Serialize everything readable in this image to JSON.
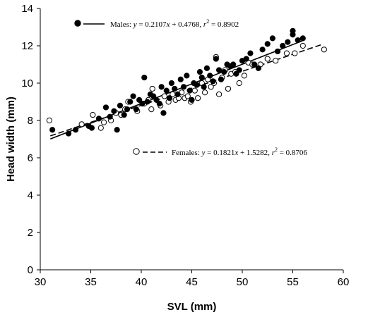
{
  "chart_data": {
    "type": "scatter",
    "xlabel": "SVL (mm)",
    "ylabel": "Head width (mm)",
    "xlim": [
      30,
      60
    ],
    "ylim": [
      0,
      14
    ],
    "xticks": [
      30,
      35,
      40,
      45,
      50,
      55,
      60
    ],
    "yticks": [
      0,
      2,
      4,
      6,
      8,
      10,
      12,
      14
    ],
    "grid": false,
    "legend_position": "inside, top-left and middle-right",
    "series": [
      {
        "name": "Males",
        "marker": "filled-circle",
        "line_style": "solid",
        "color": "#000000",
        "legend_text": {
          "label": "Males: ",
          "y": "y",
          "eq": " = 0.2107",
          "x": "x",
          "rest": " + 0.4768, ",
          "r": "r",
          "sup": "2",
          "val": " = 0.8902"
        },
        "fit": {
          "slope": 0.2107,
          "intercept": 0.4768,
          "x_range": [
            31,
            56
          ]
        },
        "points": [
          [
            31.2,
            7.5
          ],
          [
            32.8,
            7.3
          ],
          [
            33.5,
            7.5
          ],
          [
            34.8,
            7.7
          ],
          [
            35.1,
            7.6
          ],
          [
            35.8,
            8.1
          ],
          [
            36.5,
            8.7
          ],
          [
            36.9,
            8.2
          ],
          [
            37.3,
            8.5
          ],
          [
            37.6,
            7.5
          ],
          [
            37.9,
            8.8
          ],
          [
            38.3,
            8.3
          ],
          [
            38.6,
            8.6
          ],
          [
            38.9,
            9.0
          ],
          [
            39.2,
            9.3
          ],
          [
            39.5,
            8.6
          ],
          [
            39.8,
            9.1
          ],
          [
            40.1,
            8.9
          ],
          [
            40.3,
            10.3
          ],
          [
            40.6,
            9.0
          ],
          [
            40.9,
            9.4
          ],
          [
            41.2,
            9.3
          ],
          [
            41.5,
            9.1
          ],
          [
            41.8,
            8.9
          ],
          [
            42.0,
            9.8
          ],
          [
            42.2,
            8.4
          ],
          [
            42.5,
            9.6
          ],
          [
            42.8,
            9.2
          ],
          [
            43.0,
            10.0
          ],
          [
            43.3,
            9.7
          ],
          [
            43.6,
            9.4
          ],
          [
            43.9,
            10.2
          ],
          [
            44.2,
            9.8
          ],
          [
            44.5,
            10.4
          ],
          [
            44.8,
            9.6
          ],
          [
            45.0,
            9.1
          ],
          [
            45.2,
            10.0
          ],
          [
            45.5,
            9.9
          ],
          [
            45.8,
            10.6
          ],
          [
            46.0,
            10.3
          ],
          [
            46.2,
            9.8
          ],
          [
            46.5,
            10.8
          ],
          [
            46.8,
            10.4
          ],
          [
            47.1,
            10.1
          ],
          [
            47.4,
            11.3
          ],
          [
            47.7,
            10.7
          ],
          [
            47.9,
            10.2
          ],
          [
            48.2,
            10.6
          ],
          [
            48.5,
            11.0
          ],
          [
            48.8,
            10.9
          ],
          [
            49.1,
            11.0
          ],
          [
            49.4,
            10.5
          ],
          [
            49.7,
            10.7
          ],
          [
            50.0,
            11.2
          ],
          [
            50.4,
            11.3
          ],
          [
            50.8,
            11.6
          ],
          [
            51.2,
            11.0
          ],
          [
            51.6,
            10.8
          ],
          [
            52.0,
            11.8
          ],
          [
            52.5,
            12.1
          ],
          [
            53.0,
            12.4
          ],
          [
            53.5,
            11.7
          ],
          [
            54.0,
            12.0
          ],
          [
            54.5,
            12.2
          ],
          [
            55.0,
            12.8
          ],
          [
            55.0,
            12.6
          ],
          [
            55.5,
            12.3
          ],
          [
            56.0,
            12.4
          ]
        ]
      },
      {
        "name": "Females",
        "marker": "open-circle",
        "line_style": "dashed",
        "color": "#000000",
        "legend_text": {
          "label": "Females: ",
          "y": "y",
          "eq": " = 0.1821",
          "x": "x",
          "rest": " + 1.5282, ",
          "r": "r",
          "sup": "2",
          "val": " = 0.8706"
        },
        "fit": {
          "slope": 0.1821,
          "intercept": 1.5282,
          "x_range": [
            31,
            58
          ]
        },
        "points": [
          [
            30.9,
            8.0
          ],
          [
            34.1,
            7.8
          ],
          [
            35.2,
            8.3
          ],
          [
            36.0,
            7.6
          ],
          [
            36.3,
            7.9
          ],
          [
            37.0,
            8.0
          ],
          [
            37.5,
            8.4
          ],
          [
            38.0,
            8.3
          ],
          [
            38.4,
            8.6
          ],
          [
            38.7,
            9.0
          ],
          [
            39.6,
            8.5
          ],
          [
            40.3,
            8.9
          ],
          [
            40.7,
            9.1
          ],
          [
            41.0,
            8.6
          ],
          [
            41.1,
            9.7
          ],
          [
            41.9,
            8.8
          ],
          [
            42.3,
            9.3
          ],
          [
            42.7,
            9.0
          ],
          [
            43.1,
            9.4
          ],
          [
            43.4,
            9.1
          ],
          [
            43.7,
            9.2
          ],
          [
            44.0,
            9.5
          ],
          [
            44.3,
            9.2
          ],
          [
            44.6,
            9.3
          ],
          [
            44.9,
            9.0
          ],
          [
            45.3,
            9.6
          ],
          [
            45.6,
            9.2
          ],
          [
            46.0,
            10.0
          ],
          [
            46.3,
            9.5
          ],
          [
            46.6,
            10.2
          ],
          [
            46.9,
            9.8
          ],
          [
            47.2,
            10.0
          ],
          [
            47.4,
            11.4
          ],
          [
            47.7,
            9.4
          ],
          [
            48.0,
            10.3
          ],
          [
            48.3,
            10.7
          ],
          [
            48.6,
            9.7
          ],
          [
            48.9,
            10.5
          ],
          [
            49.3,
            10.6
          ],
          [
            49.7,
            10.0
          ],
          [
            50.2,
            10.4
          ],
          [
            50.6,
            11.1
          ],
          [
            51.0,
            11.0
          ],
          [
            51.8,
            11.0
          ],
          [
            52.5,
            11.3
          ],
          [
            53.3,
            11.2
          ],
          [
            54.4,
            11.6
          ],
          [
            55.2,
            11.6
          ],
          [
            56.0,
            12.0
          ],
          [
            58.1,
            11.8
          ]
        ]
      }
    ]
  }
}
